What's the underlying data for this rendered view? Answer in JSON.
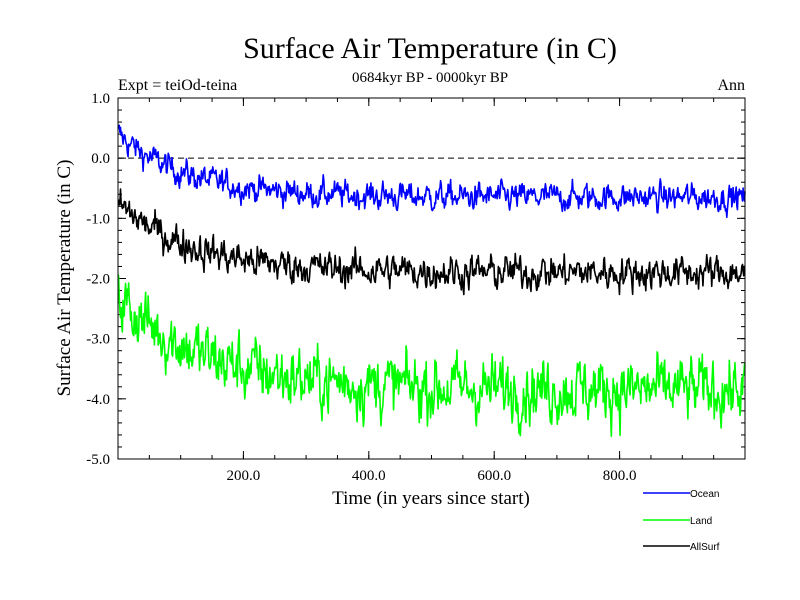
{
  "chart_data": {
    "type": "line",
    "title": "Surface Air Temperature (in C)",
    "subtitle": "0684kyr BP - 0000kyr BP",
    "left_label": "Expt = teiOd-teina",
    "right_label": "Ann",
    "xlabel": "Time (in years since start)",
    "ylabel": "Surface Air Temperature (in C)",
    "xlim": [
      0,
      1000
    ],
    "ylim": [
      -5.0,
      1.0
    ],
    "xticks": [
      200,
      400,
      600,
      800
    ],
    "xtick_labels": [
      "200.0",
      "400.0",
      "600.0",
      "800.0"
    ],
    "yticks": [
      1.0,
      0.0,
      -1.0,
      -2.0,
      -3.0,
      -4.0,
      -5.0
    ],
    "ytick_labels": [
      "1.0",
      "0.0",
      "-1.0",
      "-2.0",
      "-3.0",
      "-4.0",
      "-5.0"
    ],
    "reference_line": 0.0,
    "series": [
      {
        "name": "Ocean",
        "color": "#0000ff",
        "start": 0.4,
        "plateau": -0.65,
        "tau": 110,
        "noise": 0.12,
        "n_points": 1000
      },
      {
        "name": "Land",
        "color": "#00ff00",
        "start": -2.3,
        "plateau": -3.85,
        "tau": 140,
        "noise": 0.28,
        "n_points": 1000
      },
      {
        "name": "AllSurf",
        "color": "#000000",
        "start": -0.75,
        "plateau": -1.9,
        "tau": 120,
        "noise": 0.15,
        "n_points": 1000
      }
    ]
  }
}
